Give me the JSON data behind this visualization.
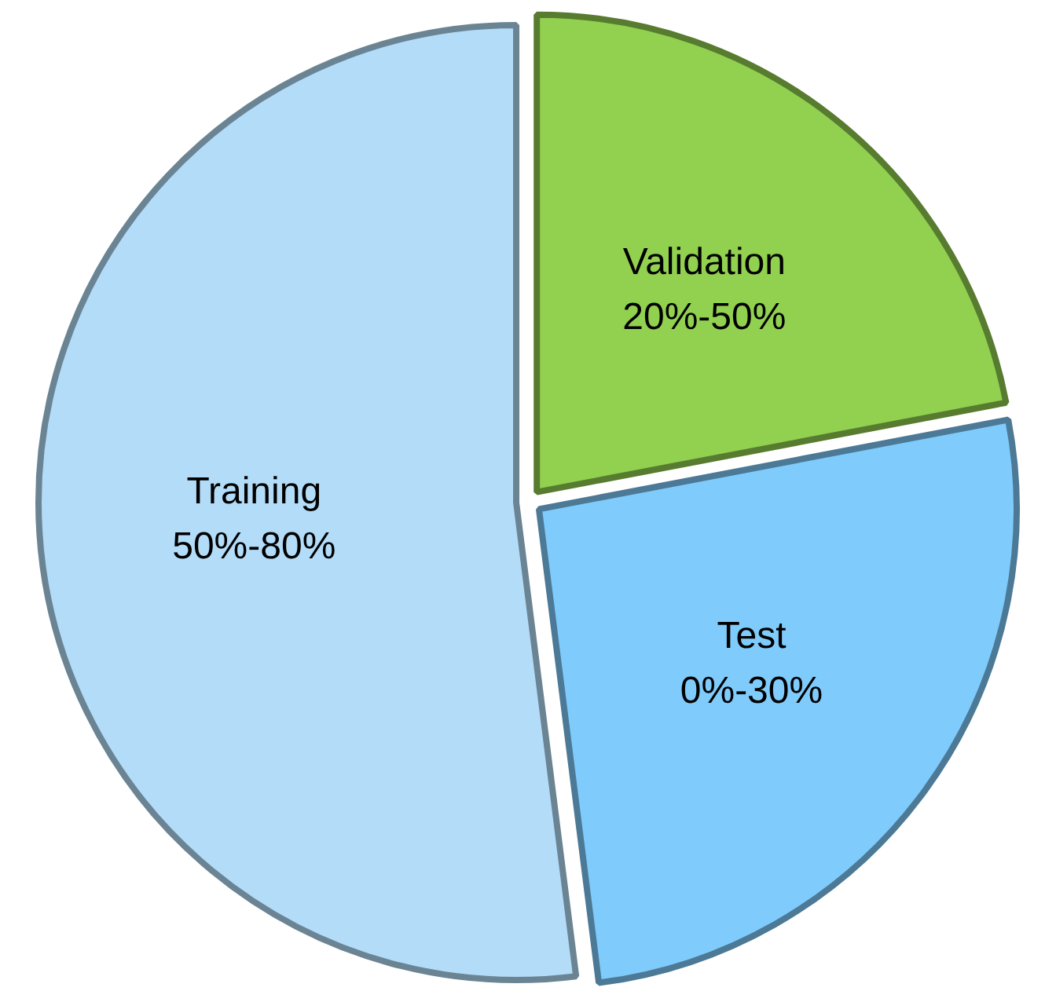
{
  "chart_data": {
    "type": "pie",
    "categories": [
      "Validation",
      "Test",
      "Training"
    ],
    "values": [
      22,
      26,
      52
    ],
    "colors": [
      "#92d050",
      "#7fcbfb",
      "#b3dcf8"
    ],
    "annotations": [
      "20%-50%",
      "0%-30%",
      "50%-80%"
    ]
  }
}
